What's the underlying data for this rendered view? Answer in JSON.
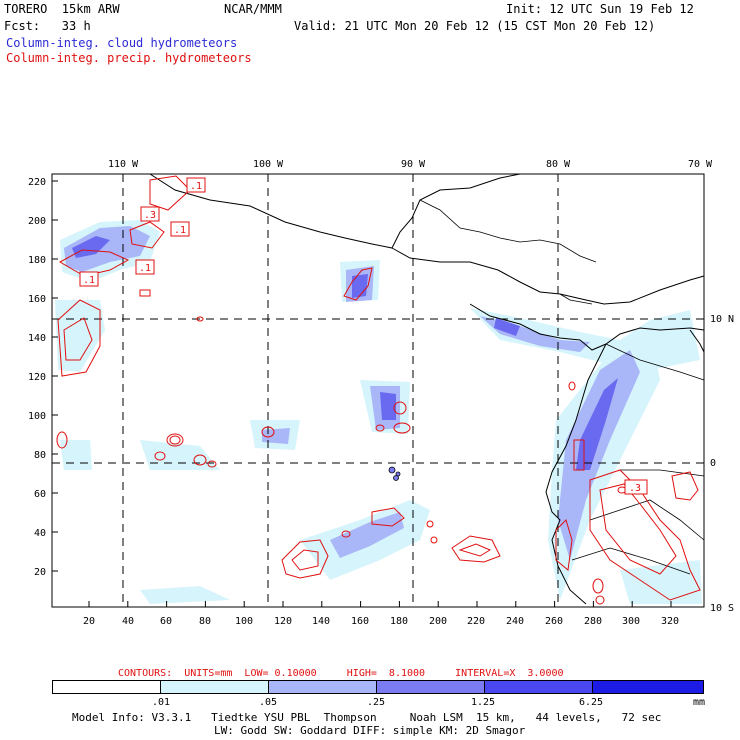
{
  "header": {
    "model": "TORERO  15km ARW",
    "org": "NCAR/MMM",
    "init": "Init: 12 UTC Sun 19 Feb 12",
    "fcst": "Fcst:   33 h",
    "valid": "Valid: 21 UTC Mon 20 Feb 12 (15 CST Mon 20 Feb 12)",
    "field_cloud": "Column-integ. cloud hydrometeors",
    "field_precip": "Column-integ. precip. hydrometeors"
  },
  "axes": {
    "top_lon_labels": [
      "110 W",
      "100 W",
      "90 W",
      "80 W",
      "70 W"
    ],
    "right_lat_labels": [
      "10 N",
      "0",
      "10 S"
    ],
    "left_y_ticks": [
      "220",
      "200",
      "180",
      "160",
      "140",
      "120",
      "100",
      "80",
      "60",
      "40",
      "20"
    ],
    "bottom_x_ticks": [
      "20",
      "40",
      "60",
      "80",
      "100",
      "120",
      "140",
      "160",
      "180",
      "200",
      "220",
      "240",
      "260",
      "280",
      "300",
      "320"
    ]
  },
  "contour_labels": [
    ".1",
    ".3",
    ".1",
    ".1",
    ".1",
    ".3"
  ],
  "contour_info": {
    "text": "CONTOURS:  UNITS=mm  LOW= 0.10000     HIGH=  8.1000     INTERVAL=X  3.0000"
  },
  "colorbar": {
    "labels": [
      ".01",
      ".05",
      ".25",
      "1.25",
      "6.25"
    ],
    "unit": "mm",
    "colors": [
      "#ffffff",
      "#d6f4fb",
      "#a9b6f7",
      "#7b7bf2",
      "#4848ee",
      "#1c1ce6"
    ]
  },
  "footer": {
    "line1": "Model Info: V3.3.1   Tiedtke YSU PBL  Thompson     Noah LSM  15 km,   44 levels,   72 sec",
    "line2": "LW: Godd SW: Goddard DIFF: simple KM: 2D Smagor"
  }
}
